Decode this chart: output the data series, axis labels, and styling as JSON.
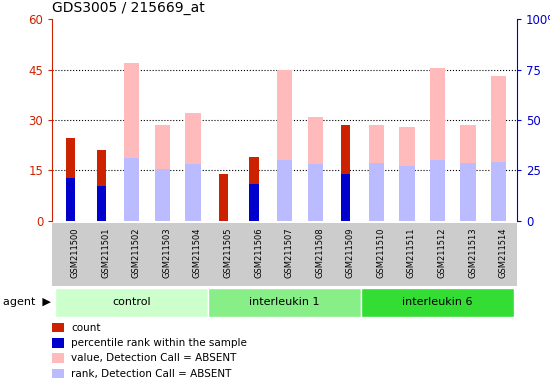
{
  "title": "GDS3005 / 215669_at",
  "samples": [
    "GSM211500",
    "GSM211501",
    "GSM211502",
    "GSM211503",
    "GSM211504",
    "GSM211505",
    "GSM211506",
    "GSM211507",
    "GSM211508",
    "GSM211509",
    "GSM211510",
    "GSM211511",
    "GSM211512",
    "GSM211513",
    "GSM211514"
  ],
  "count_values": [
    24.5,
    21.0,
    null,
    null,
    null,
    14.0,
    19.0,
    null,
    null,
    28.5,
    null,
    null,
    null,
    null,
    null
  ],
  "rank_values": [
    21.0,
    17.5,
    null,
    null,
    null,
    null,
    18.5,
    null,
    null,
    23.0,
    null,
    null,
    null,
    null,
    null
  ],
  "value_absent": [
    null,
    null,
    47.0,
    28.5,
    32.0,
    null,
    null,
    45.0,
    31.0,
    null,
    28.5,
    28.0,
    45.5,
    28.5,
    43.0
  ],
  "rank_absent": [
    null,
    null,
    31.0,
    25.5,
    28.0,
    null,
    null,
    30.0,
    28.0,
    null,
    28.5,
    27.0,
    30.0,
    28.5,
    29.0
  ],
  "ylim_left": [
    0,
    60
  ],
  "ylim_right": [
    0,
    100
  ],
  "yticks_left": [
    0,
    15,
    30,
    45,
    60
  ],
  "yticks_right": [
    0,
    25,
    50,
    75,
    100
  ],
  "ytick_labels_left": [
    "0",
    "15",
    "30",
    "45",
    "60"
  ],
  "ytick_labels_right": [
    "0",
    "25",
    "50",
    "75",
    "100%"
  ],
  "grid_values": [
    15,
    30,
    45
  ],
  "bar_width": 0.5,
  "narrow_bar_width": 0.3,
  "color_count": "#cc2200",
  "color_rank": "#0000cc",
  "color_value_absent": "#ffbbbb",
  "color_rank_absent": "#bbbbff",
  "left_axis_color": "#cc2200",
  "right_axis_color": "#0000cc",
  "group_bounds": [
    {
      "label": "control",
      "start": 0,
      "end": 4,
      "color": "#ccffcc"
    },
    {
      "label": "interleukin 1",
      "start": 5,
      "end": 9,
      "color": "#88ee88"
    },
    {
      "label": "interleukin 6",
      "start": 10,
      "end": 14,
      "color": "#33dd33"
    }
  ],
  "legend_items": [
    {
      "color": "#cc2200",
      "label": "count"
    },
    {
      "color": "#0000cc",
      "label": "percentile rank within the sample"
    },
    {
      "color": "#ffbbbb",
      "label": "value, Detection Call = ABSENT"
    },
    {
      "color": "#bbbbff",
      "label": "rank, Detection Call = ABSENT"
    }
  ]
}
